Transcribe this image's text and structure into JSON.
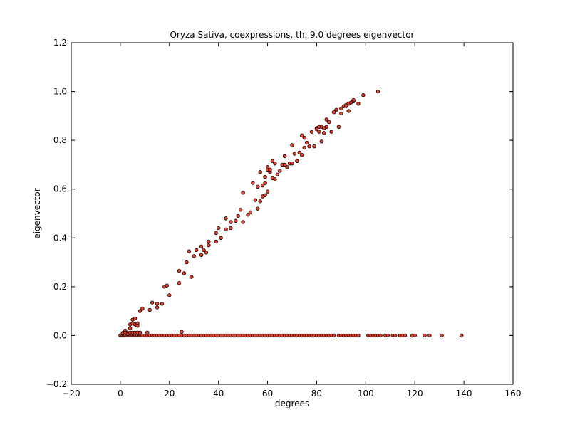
{
  "chart_data": {
    "type": "scatter",
    "title": "Oryza Sativa, coexpressions, th. 9.0 degrees eigenvector",
    "xlabel": "degrees",
    "ylabel": "eigenvector",
    "xlim": [
      -20,
      160
    ],
    "ylim": [
      -0.2,
      1.2
    ],
    "xticks": [
      -20,
      0,
      20,
      40,
      60,
      80,
      100,
      120,
      140,
      160
    ],
    "yticks": [
      -0.2,
      0.0,
      0.2,
      0.4,
      0.6,
      0.8,
      1.0,
      1.2
    ],
    "xtick_labels": [
      "−20",
      "0",
      "20",
      "40",
      "60",
      "80",
      "100",
      "120",
      "140",
      "160"
    ],
    "ytick_labels": [
      "−0.2",
      "0.0",
      "0.2",
      "0.4",
      "0.6",
      "0.8",
      "1.0",
      "1.2"
    ],
    "grid": false,
    "marker_color": "#e8402a",
    "marker_edge_color": "#000000",
    "series": [
      {
        "name": "",
        "x": [
          1,
          2,
          3,
          4,
          4,
          5,
          5,
          6,
          6,
          7,
          7,
          8,
          9,
          12,
          13,
          15,
          15,
          17,
          18,
          19,
          20,
          24,
          24,
          26,
          27,
          28,
          29,
          30,
          31,
          33,
          33,
          34,
          35,
          36,
          36,
          39,
          39,
          40,
          41,
          43,
          43,
          45,
          45,
          47,
          48,
          49,
          50,
          50,
          52,
          53,
          54,
          55,
          56,
          56,
          57,
          57,
          58,
          58,
          59,
          59,
          59,
          60,
          60,
          60,
          61,
          61,
          62,
          62,
          63,
          63,
          64,
          65,
          66,
          67,
          67,
          68,
          69,
          70,
          70,
          71,
          72,
          73,
          74,
          74,
          75,
          75,
          76,
          77,
          78,
          79,
          80,
          80,
          81,
          81,
          82,
          82,
          83,
          83,
          84,
          84,
          85,
          86,
          87,
          88,
          89,
          90,
          90,
          91,
          92,
          92,
          93,
          93,
          94,
          95,
          95,
          97,
          99,
          105,
          0,
          0.5,
          1,
          1.5,
          2,
          2.5,
          3,
          3.5,
          4,
          4.5,
          5,
          5.5,
          6,
          6.5,
          7,
          7.5,
          8,
          8.5,
          9,
          10,
          11,
          12,
          13,
          14,
          15,
          16,
          17,
          18,
          19,
          20,
          21,
          22,
          23,
          24,
          25,
          26,
          27,
          28,
          29,
          30,
          31,
          32,
          33,
          34,
          35,
          36,
          37,
          38,
          39,
          40,
          41,
          42,
          43,
          44,
          45,
          46,
          47,
          48,
          49,
          50,
          51,
          52,
          53,
          54,
          55,
          56,
          57,
          58,
          59,
          60,
          61,
          62,
          63,
          64,
          65,
          66,
          67,
          68,
          69,
          70,
          71,
          72,
          73,
          74,
          75,
          76,
          77,
          78,
          79,
          80,
          81,
          82,
          83,
          84,
          85,
          86,
          87,
          89,
          90,
          91,
          92,
          93,
          94,
          95,
          96,
          97,
          101,
          102,
          103,
          104,
          105,
          106,
          108,
          109,
          111,
          112,
          114,
          115,
          116,
          119,
          120,
          124,
          126,
          131,
          139,
          1,
          2,
          3,
          4,
          5,
          6,
          7,
          8,
          11,
          25
        ],
        "y": [
          0.01,
          0.02,
          0.01,
          0.03,
          0.045,
          0.05,
          0.065,
          0.045,
          0.07,
          0.05,
          0.04,
          0.1,
          0.11,
          0.105,
          0.135,
          0.115,
          0.13,
          0.13,
          0.2,
          0.205,
          0.165,
          0.215,
          0.265,
          0.255,
          0.3,
          0.345,
          0.24,
          0.325,
          0.35,
          0.33,
          0.365,
          0.35,
          0.34,
          0.37,
          0.385,
          0.385,
          0.42,
          0.44,
          0.4,
          0.48,
          0.435,
          0.44,
          0.465,
          0.47,
          0.49,
          0.515,
          0.465,
          0.585,
          0.495,
          0.505,
          0.625,
          0.555,
          0.52,
          0.61,
          0.55,
          0.67,
          0.57,
          0.615,
          0.65,
          0.575,
          0.625,
          0.69,
          0.68,
          0.59,
          0.67,
          0.68,
          0.645,
          0.715,
          0.64,
          0.705,
          0.66,
          0.675,
          0.7,
          0.735,
          0.7,
          0.69,
          0.705,
          0.705,
          0.78,
          0.745,
          0.715,
          0.75,
          0.82,
          0.74,
          0.77,
          0.81,
          0.79,
          0.775,
          0.835,
          0.775,
          0.85,
          0.845,
          0.855,
          0.835,
          0.855,
          0.795,
          0.85,
          0.83,
          0.885,
          0.855,
          0.875,
          0.835,
          0.915,
          0.925,
          0.855,
          0.93,
          0.91,
          0.94,
          0.945,
          0.94,
          0.92,
          0.95,
          0.955,
          0.96,
          0.965,
          0.95,
          0.985,
          1.0,
          0,
          0,
          0,
          0,
          0,
          0,
          0,
          0,
          0,
          0,
          0,
          0,
          0,
          0,
          0,
          0,
          0,
          0,
          0,
          0,
          0,
          0,
          0,
          0,
          0,
          0,
          0,
          0,
          0,
          0,
          0,
          0,
          0,
          0,
          0,
          0,
          0,
          0,
          0,
          0,
          0,
          0,
          0,
          0,
          0,
          0,
          0,
          0,
          0,
          0,
          0,
          0,
          0,
          0,
          0,
          0,
          0,
          0,
          0,
          0,
          0,
          0,
          0,
          0,
          0,
          0,
          0,
          0,
          0,
          0,
          0,
          0,
          0,
          0,
          0,
          0,
          0,
          0,
          0,
          0,
          0,
          0,
          0,
          0,
          0,
          0,
          0,
          0,
          0,
          0,
          0,
          0,
          0,
          0,
          0,
          0,
          0,
          0,
          0,
          0,
          0,
          0,
          0,
          0,
          0,
          0,
          0,
          0,
          0,
          0,
          0,
          0,
          0,
          0,
          0,
          0,
          0,
          0,
          0,
          0,
          0,
          0,
          0,
          0,
          0,
          0.01,
          0.012,
          0.006,
          0.012,
          0.012,
          0.012,
          0.012,
          0.012,
          0.012,
          0.015
        ]
      }
    ]
  }
}
